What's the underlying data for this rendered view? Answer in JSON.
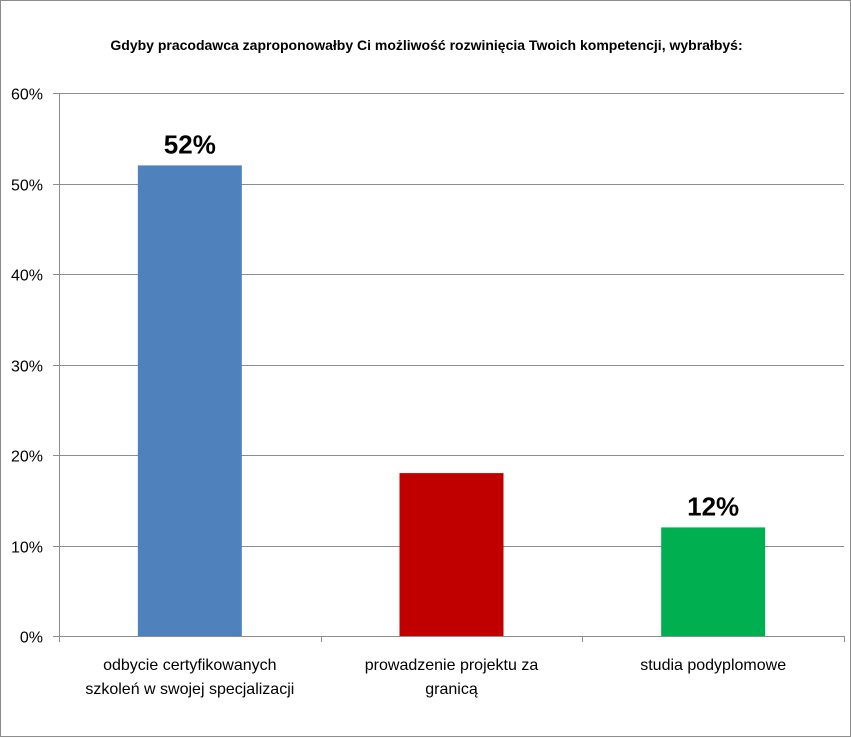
{
  "chart_data": {
    "type": "bar",
    "title": "Gdyby pracodawca zaproponowałby Ci możliwość rozwinięcia Twoich kompetencji, wybrałbyś:",
    "categories": [
      [
        "odbycie certyfikowanych",
        "szkoleń w swojej specjalizacji"
      ],
      [
        "prowadzenie projektu za",
        "granicą"
      ],
      [
        "studia podyplomowe"
      ]
    ],
    "values": [
      52,
      18,
      12
    ],
    "data_labels": [
      "52%",
      "",
      "12%"
    ],
    "colors": [
      "#4f81bd",
      "#c00000",
      "#00b050"
    ],
    "ylim": [
      0,
      60
    ],
    "yticks": [
      0,
      10,
      20,
      30,
      40,
      50,
      60
    ],
    "ytick_labels": [
      "0%",
      "10%",
      "20%",
      "30%",
      "40%",
      "50%",
      "60%"
    ],
    "grid": true,
    "legend": "none",
    "xlabel": "",
    "ylabel": ""
  }
}
